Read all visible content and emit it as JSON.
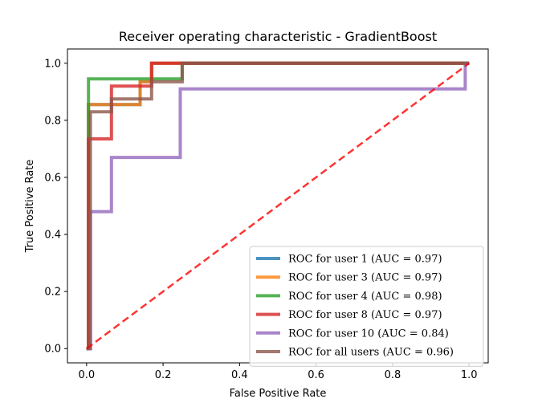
{
  "chart_data": {
    "type": "line",
    "title": "Receiver operating characteristic - GradientBoost",
    "xlabel": "False Positive Rate",
    "ylabel": "True Positive Rate",
    "xlim": [
      -0.05,
      1.05
    ],
    "ylim": [
      -0.05,
      1.05
    ],
    "x_ticks": [
      0.0,
      0.2,
      0.4,
      0.6,
      0.8,
      1.0
    ],
    "y_ticks": [
      0.0,
      0.2,
      0.4,
      0.6,
      0.8,
      1.0
    ],
    "x_tick_labels": [
      "0.0",
      "0.2",
      "0.4",
      "0.6",
      "0.8",
      "1.0"
    ],
    "y_tick_labels": [
      "0.0",
      "0.2",
      "0.4",
      "0.6",
      "0.8",
      "1.0"
    ],
    "grid": false,
    "legend_position": "lower right",
    "series": [
      {
        "name": "ROC for user 1 (AUC = 0.97)",
        "color": "#1f77b4",
        "x": [
          0.0,
          0.005,
          0.005,
          0.14,
          0.14,
          0.17,
          0.17,
          1.0
        ],
        "y": [
          0.0,
          0.0,
          0.855,
          0.855,
          0.935,
          0.935,
          1.0,
          1.0
        ]
      },
      {
        "name": "ROC for user 3 (AUC = 0.97)",
        "color": "#ff7f0e",
        "x": [
          0.0,
          0.005,
          0.005,
          0.14,
          0.14,
          0.17,
          0.17,
          1.0
        ],
        "y": [
          0.0,
          0.0,
          0.855,
          0.855,
          0.935,
          0.935,
          1.0,
          1.0
        ]
      },
      {
        "name": "ROC for user 4 (AUC = 0.98)",
        "color": "#2ca02c",
        "x": [
          0.0,
          0.005,
          0.005,
          0.24,
          0.24,
          0.25,
          0.25,
          1.0
        ],
        "y": [
          0.0,
          0.0,
          0.945,
          0.945,
          0.945,
          0.945,
          1.0,
          1.0
        ]
      },
      {
        "name": "ROC for user 8 (AUC = 0.97)",
        "color": "#d62728",
        "x": [
          0.0,
          0.005,
          0.005,
          0.065,
          0.065,
          0.075,
          0.075,
          0.17,
          0.17,
          1.0
        ],
        "y": [
          0.0,
          0.0,
          0.735,
          0.735,
          0.92,
          0.92,
          0.92,
          0.92,
          1.0,
          1.0
        ]
      },
      {
        "name": "ROC for user 10 (AUC = 0.84)",
        "color": "#9467bd",
        "x": [
          0.0,
          0.01,
          0.01,
          0.065,
          0.065,
          0.245,
          0.245,
          0.99,
          0.99,
          1.0
        ],
        "y": [
          0.0,
          0.0,
          0.48,
          0.48,
          0.67,
          0.67,
          0.91,
          0.91,
          1.0,
          1.0
        ]
      },
      {
        "name": "ROC for all users (AUC = 0.96)",
        "color": "#8c564b",
        "x": [
          0.0,
          0.01,
          0.01,
          0.065,
          0.065,
          0.17,
          0.17,
          0.25,
          0.25,
          1.0
        ],
        "y": [
          0.0,
          0.0,
          0.83,
          0.83,
          0.875,
          0.875,
          0.935,
          0.935,
          1.0,
          1.0
        ]
      }
    ],
    "reference_line": {
      "x": [
        0.0,
        1.0
      ],
      "y": [
        0.0,
        1.0
      ],
      "color": "#ff0000",
      "style": "dashed"
    }
  }
}
